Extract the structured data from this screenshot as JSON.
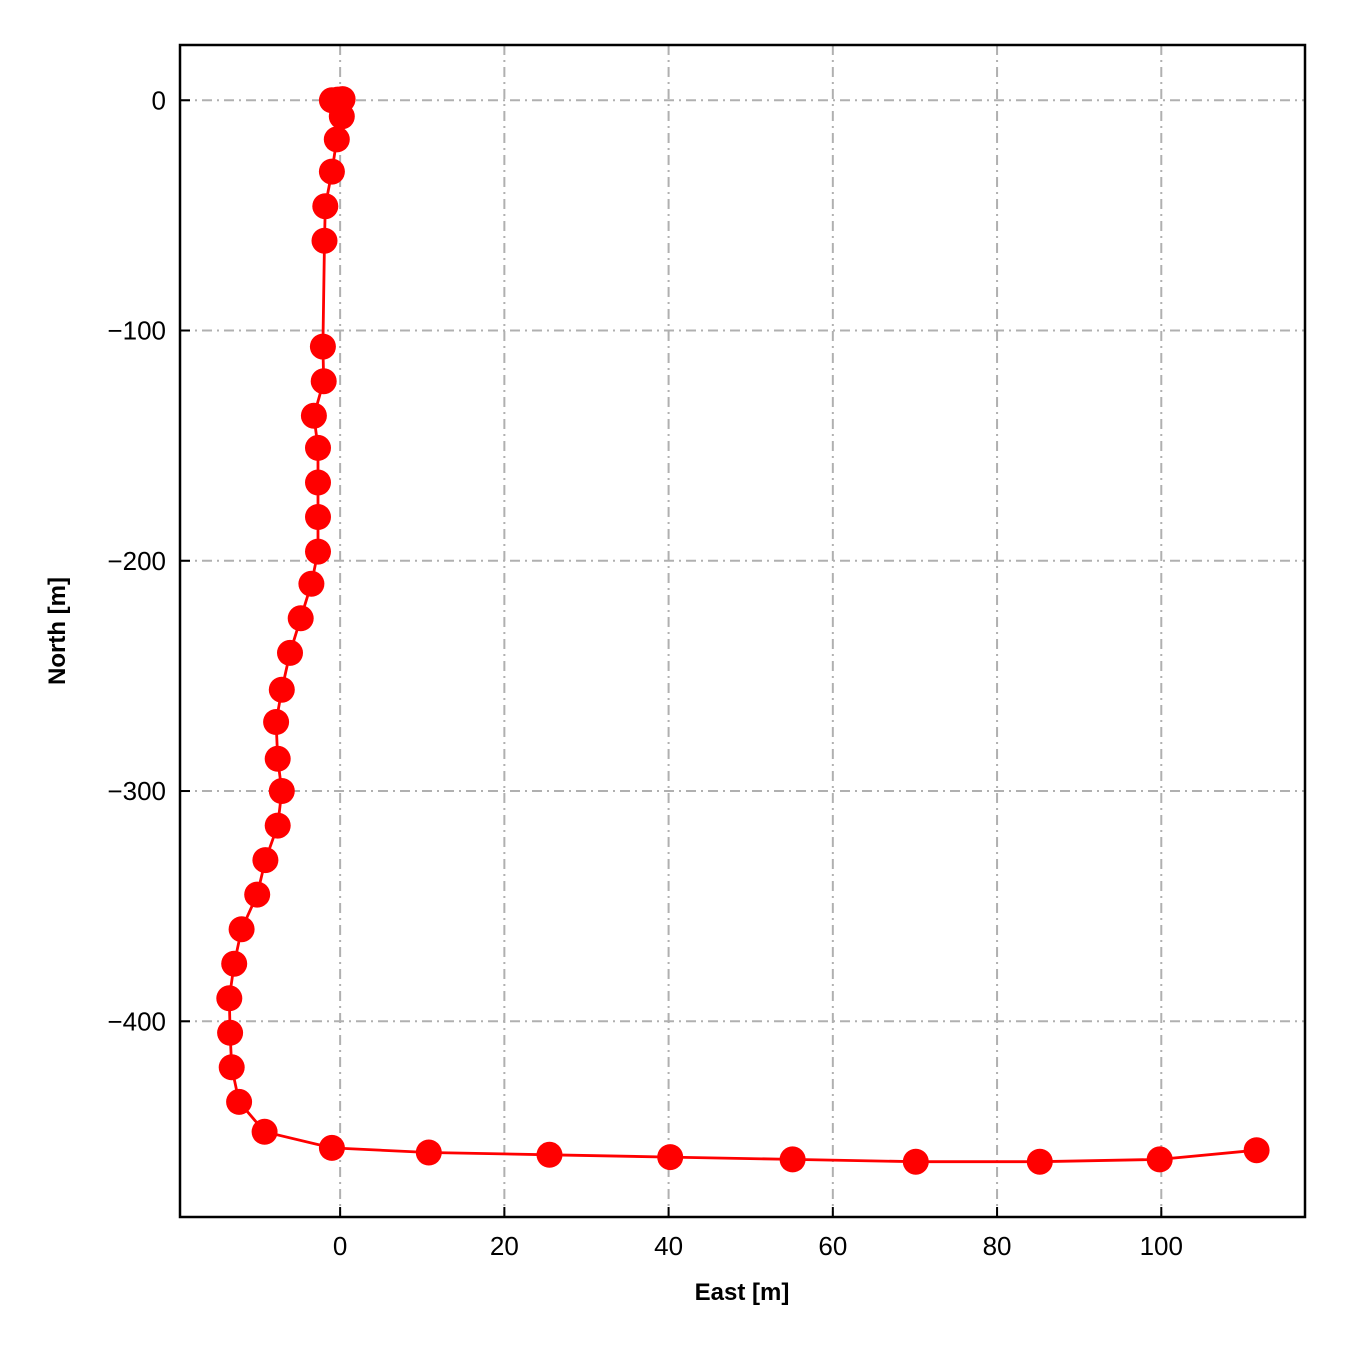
{
  "chart_data": {
    "type": "line",
    "xlabel": "East [m]",
    "ylabel": "North [m]",
    "xlim": [
      -19.5,
      117.5
    ],
    "ylim": [
      -485,
      24
    ],
    "x_ticks": [
      0,
      20,
      40,
      60,
      80,
      100
    ],
    "y_ticks": [
      0,
      -100,
      -200,
      -300,
      -400
    ],
    "x_tick_labels": [
      "0",
      "20",
      "40",
      "60",
      "80",
      "100"
    ],
    "y_tick_labels": [
      "0",
      "−100",
      "−200",
      "−300",
      "−400"
    ],
    "grid": true,
    "grid_style": "dash-dot",
    "colors": {
      "series": "#ff0000",
      "grid": "#b0b0b0"
    },
    "series": [
      {
        "marker": "circle",
        "points": [
          [
            0.1,
            0.2
          ],
          [
            0.3,
            0.5
          ],
          [
            0.2,
            0.0
          ],
          [
            -0.3,
            0.3
          ],
          [
            -1.0,
            0.0
          ],
          [
            0.2,
            -7
          ],
          [
            -0.4,
            -17
          ],
          [
            -1.0,
            -31
          ],
          [
            -1.8,
            -46
          ],
          [
            -1.9,
            -61
          ],
          [
            -2.1,
            -107
          ],
          [
            -2.0,
            -122
          ],
          [
            -3.2,
            -137
          ],
          [
            -2.7,
            -151
          ],
          [
            -2.7,
            -166
          ],
          [
            -2.7,
            -181
          ],
          [
            -2.7,
            -196
          ],
          [
            -3.5,
            -210
          ],
          [
            -4.8,
            -225
          ],
          [
            -6.1,
            -240
          ],
          [
            -7.1,
            -256
          ],
          [
            -7.8,
            -270
          ],
          [
            -7.6,
            -286
          ],
          [
            -7.1,
            -300
          ],
          [
            -7.6,
            -315
          ],
          [
            -9.1,
            -330
          ],
          [
            -10.1,
            -345
          ],
          [
            -12.0,
            -360
          ],
          [
            -12.9,
            -375
          ],
          [
            -13.5,
            -390
          ],
          [
            -13.4,
            -405
          ],
          [
            -13.2,
            -420
          ],
          [
            -12.3,
            -435
          ],
          [
            -9.2,
            -448
          ],
          [
            -1.0,
            -455
          ],
          [
            10.8,
            -457
          ],
          [
            25.5,
            -458
          ],
          [
            40.2,
            -459
          ],
          [
            55.1,
            -460
          ],
          [
            70.1,
            -461
          ],
          [
            85.2,
            -461
          ],
          [
            99.8,
            -460
          ],
          [
            111.6,
            -456
          ]
        ]
      }
    ]
  }
}
